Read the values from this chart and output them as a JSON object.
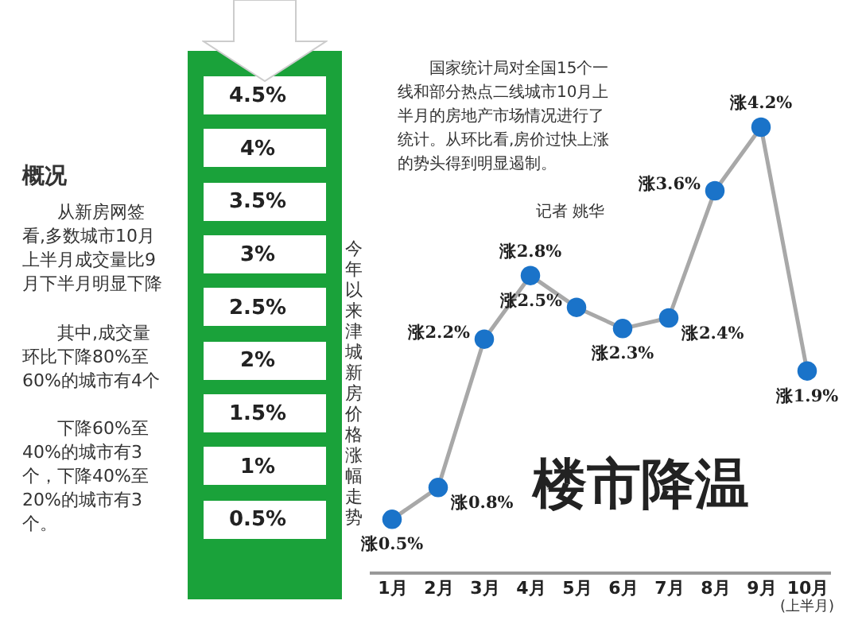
{
  "chart_data": {
    "type": "line",
    "title": "楼市降温",
    "ylabel": "今年以来津城新房价格涨幅走势",
    "categories": [
      "1月",
      "2月",
      "3月",
      "4月",
      "5月",
      "6月",
      "7月",
      "8月",
      "9月",
      "10月"
    ],
    "series": [
      {
        "color": "#1a73c9",
        "values": [
          0.5,
          0.8,
          2.2,
          2.8,
          2.5,
          2.3,
          2.4,
          3.6,
          4.2,
          1.9
        ],
        "value_labels": [
          "涨0.5%",
          "涨0.8%",
          "涨2.2%",
          "涨2.8%",
          "涨2.5%",
          "涨2.3%",
          "涨2.4%",
          "涨3.6%",
          "涨4.2%",
          "涨1.9%"
        ]
      }
    ],
    "ylim": [
      0,
      4.5
    ],
    "yticks": [
      {
        "value": 0.5,
        "label": "0.5%"
      },
      {
        "value": 1,
        "label": "1%"
      },
      {
        "value": 1.5,
        "label": "1.5%"
      },
      {
        "value": 2,
        "label": "2%"
      },
      {
        "value": 2.5,
        "label": "2.5%"
      },
      {
        "value": 3,
        "label": "3%"
      },
      {
        "value": 3.5,
        "label": "3.5%"
      },
      {
        "value": 4,
        "label": "4%"
      },
      {
        "value": 4.5,
        "label": "4.5%"
      }
    ],
    "marker": "circle",
    "line_style": "solid",
    "annotations": [
      "概况",
      "从新房网签看,多数城市10月上半月成交量比9月下半月明显下降",
      "其中,成交量环比下降80%至60%的城市有4个",
      "下降60%至40%的城市有3个，下降40%至20%的城市有3个。",
      "国家统计局对全国15个一线和部分热点二线城市10月上半月的房地产市场情况进行了统计。从环比看,房价过快上涨的势头得到明显遏制。",
      "记者 姚华",
      "(上半月)"
    ]
  }
}
